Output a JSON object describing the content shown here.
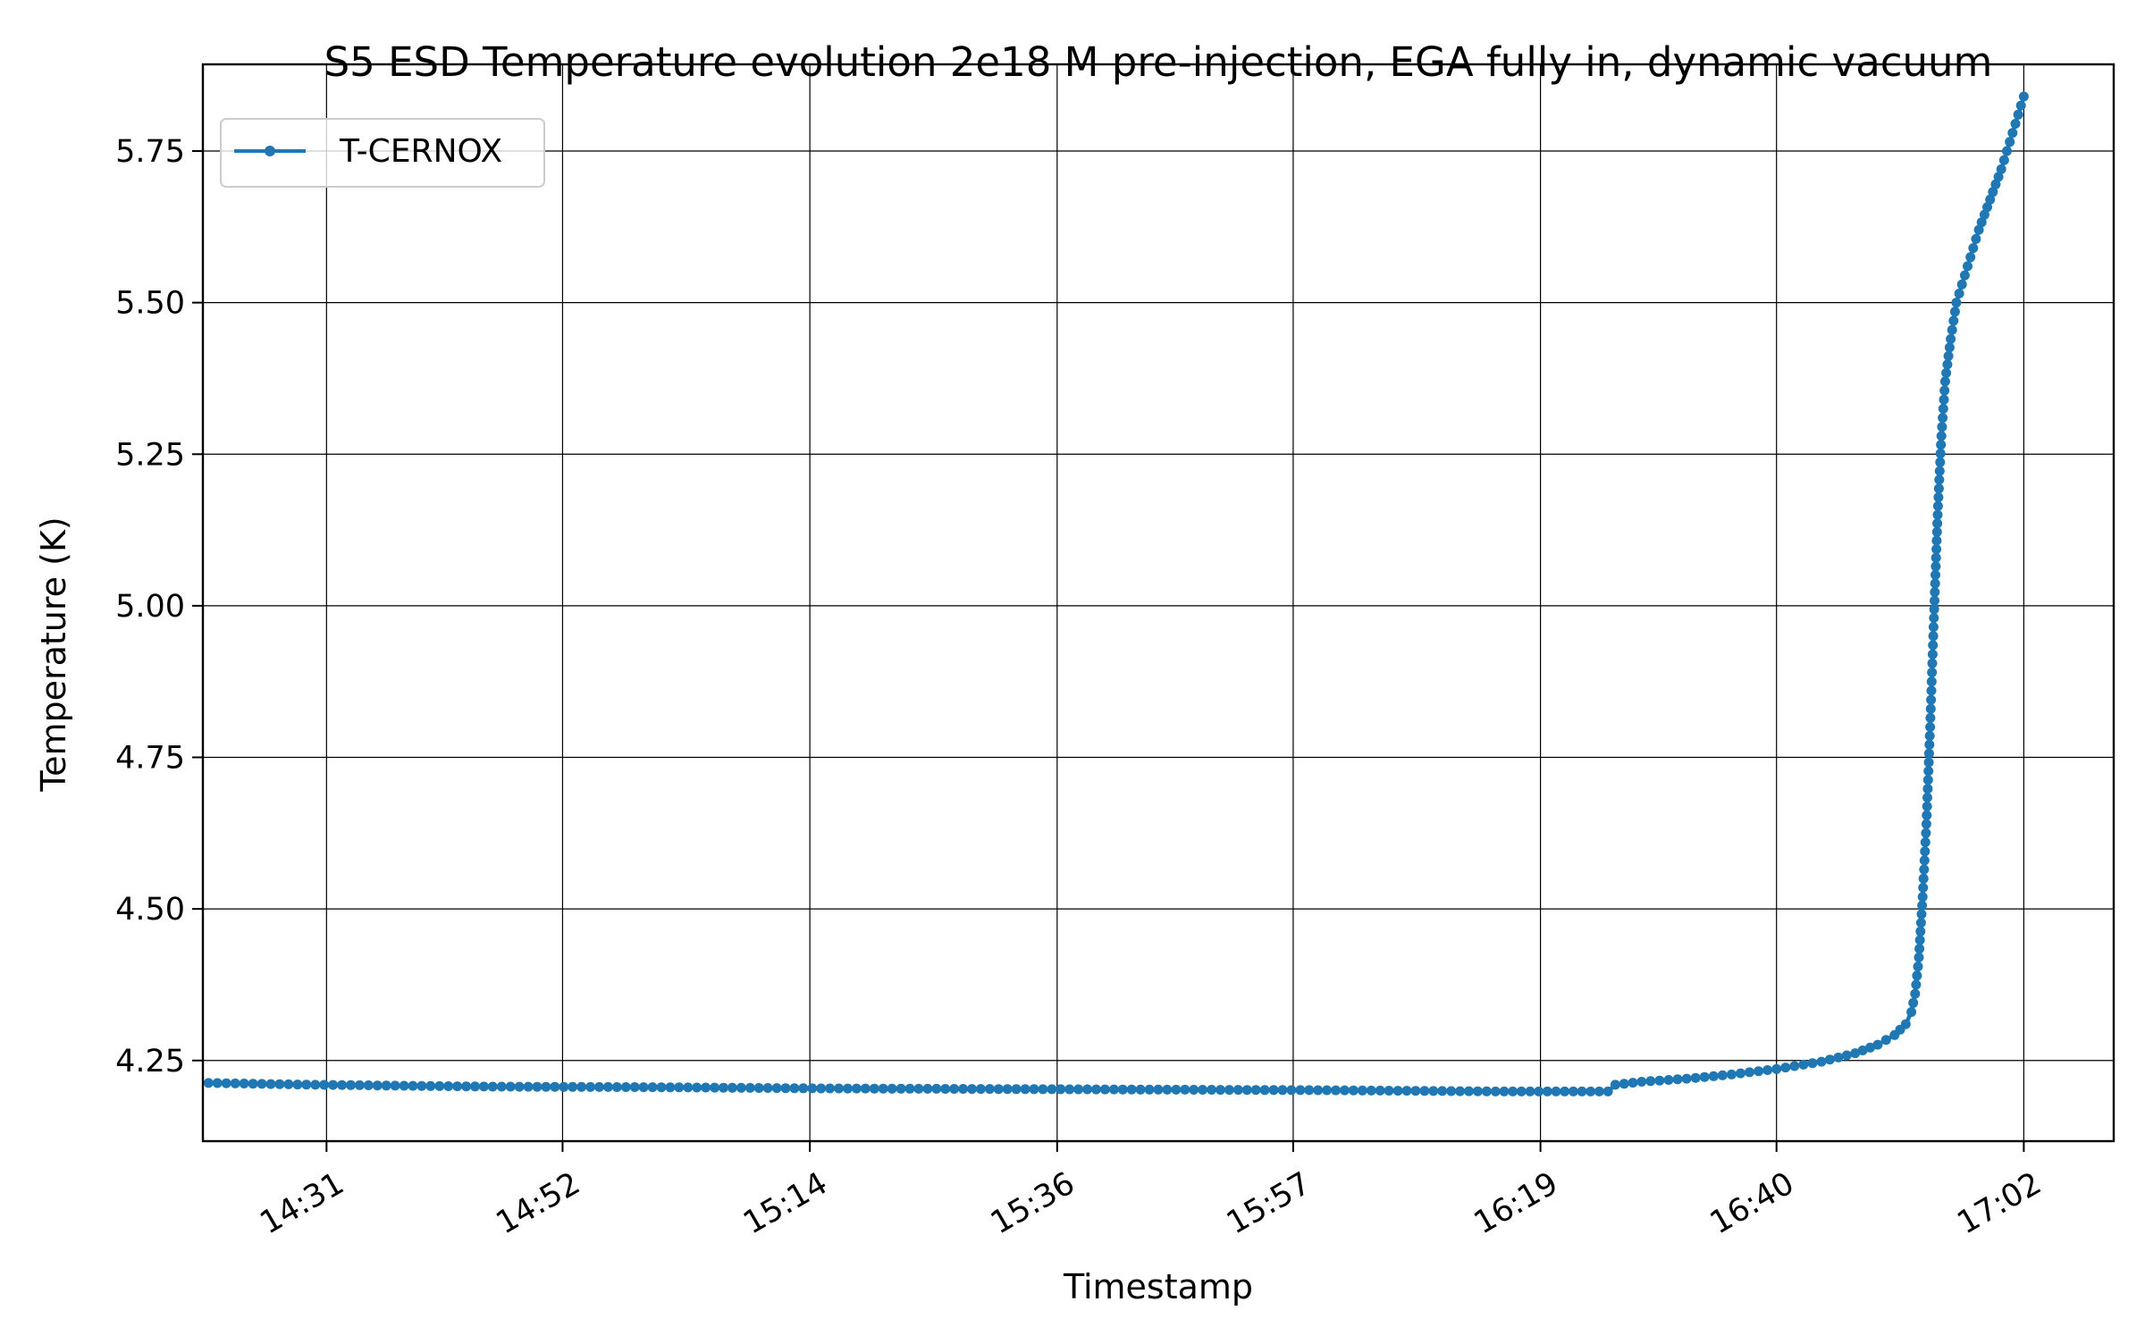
{
  "chart_data": {
    "type": "line",
    "title": "S5 ESD Temperature evolution 2e18 M pre-injection, EGA fully in, dynamic vacuum",
    "xlabel": "Timestamp",
    "ylabel": "Temperature (K)",
    "x_is_time": true,
    "xlim": [
      "14:20",
      "17:10"
    ],
    "ylim": [
      4.117,
      5.893
    ],
    "x_ticks": [
      "14:31",
      "14:52",
      "15:14",
      "15:36",
      "15:57",
      "16:19",
      "16:40",
      "17:02"
    ],
    "y_ticks": [
      4.25,
      4.5,
      4.75,
      5.0,
      5.25,
      5.5,
      5.75
    ],
    "y_tick_labels": [
      "4.25",
      "4.50",
      "4.75",
      "5.00",
      "5.25",
      "5.50",
      "5.75"
    ],
    "grid": true,
    "legend": {
      "position": "upper left",
      "entries": [
        "T-CERNOX"
      ]
    },
    "series": [
      {
        "name": "T-CERNOX",
        "color": "#1f77b4",
        "marker": "circle",
        "points": [
          {
            "t": "14:20:30",
            "y": 4.213
          },
          {
            "t": "14:30:00",
            "y": 4.21
          },
          {
            "t": "14:45:00",
            "y": 4.207
          },
          {
            "t": "15:00:00",
            "y": 4.206
          },
          {
            "t": "15:15:00",
            "y": 4.204
          },
          {
            "t": "15:30:00",
            "y": 4.203
          },
          {
            "t": "15:45:00",
            "y": 4.202
          },
          {
            "t": "16:00:00",
            "y": 4.201
          },
          {
            "t": "16:15:00",
            "y": 4.199
          },
          {
            "t": "16:25:00",
            "y": 4.199
          },
          {
            "t": "16:25:40",
            "y": 4.21
          },
          {
            "t": "16:28:00",
            "y": 4.215
          },
          {
            "t": "16:32:00",
            "y": 4.22
          },
          {
            "t": "16:36:00",
            "y": 4.227
          },
          {
            "t": "16:40:00",
            "y": 4.236
          },
          {
            "t": "16:44:00",
            "y": 4.248
          },
          {
            "t": "16:47:00",
            "y": 4.262
          },
          {
            "t": "16:49:00",
            "y": 4.276
          },
          {
            "t": "16:50:30",
            "y": 4.292
          },
          {
            "t": "16:51:30",
            "y": 4.31
          },
          {
            "t": "16:52:00",
            "y": 4.33
          },
          {
            "t": "16:52:20",
            "y": 4.36
          },
          {
            "t": "16:52:40",
            "y": 4.42
          },
          {
            "t": "16:53:00",
            "y": 4.52
          },
          {
            "t": "16:53:20",
            "y": 4.64
          },
          {
            "t": "16:53:40",
            "y": 4.8
          },
          {
            "t": "16:54:00",
            "y": 4.98
          },
          {
            "t": "16:54:20",
            "y": 5.15
          },
          {
            "t": "16:54:40",
            "y": 5.28
          },
          {
            "t": "16:55:00",
            "y": 5.37
          },
          {
            "t": "16:55:30",
            "y": 5.44
          },
          {
            "t": "16:56:00",
            "y": 5.5
          },
          {
            "t": "16:57:00",
            "y": 5.56
          },
          {
            "t": "16:58:00",
            "y": 5.62
          },
          {
            "t": "16:59:00",
            "y": 5.67
          },
          {
            "t": "17:00:00",
            "y": 5.72
          },
          {
            "t": "17:01:00",
            "y": 5.78
          },
          {
            "t": "17:02:00",
            "y": 5.84
          }
        ]
      }
    ]
  }
}
